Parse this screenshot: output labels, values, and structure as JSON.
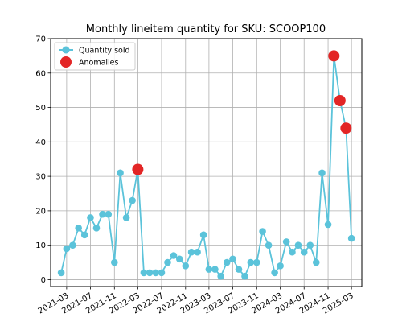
{
  "chart_data": {
    "type": "line",
    "title": "Monthly lineitem quantity for SKU: SCOOP100",
    "xlabel": "",
    "ylabel": "",
    "ylim": [
      -2,
      70
    ],
    "y_ticks": [
      0,
      10,
      20,
      30,
      40,
      50,
      60,
      70
    ],
    "x_range": [
      "2020-12-09",
      "2025-04-23"
    ],
    "x_ticks": [
      "2021-03",
      "2021-07",
      "2021-11",
      "2022-03",
      "2022-07",
      "2022-11",
      "2023-03",
      "2023-07",
      "2023-11",
      "2024-03",
      "2024-07",
      "2024-11",
      "2025-03"
    ],
    "grid": true,
    "legend_position": "top-left",
    "series": [
      {
        "name": "Quantity sold",
        "color": "#5bc3da",
        "marker": "circle",
        "x": [
          "2021-02",
          "2021-03",
          "2021-04",
          "2021-05",
          "2021-06",
          "2021-07",
          "2021-08",
          "2021-09",
          "2021-10",
          "2021-11",
          "2021-12",
          "2022-01",
          "2022-02",
          "2022-03",
          "2022-04",
          "2022-05",
          "2022-06",
          "2022-07",
          "2022-08",
          "2022-09",
          "2022-10",
          "2022-11",
          "2022-12",
          "2023-01",
          "2023-02",
          "2023-03",
          "2023-04",
          "2023-05",
          "2023-06",
          "2023-07",
          "2023-08",
          "2023-09",
          "2023-10",
          "2023-11",
          "2023-12",
          "2024-01",
          "2024-02",
          "2024-03",
          "2024-04",
          "2024-05",
          "2024-06",
          "2024-07",
          "2024-08",
          "2024-09",
          "2024-10",
          "2024-11",
          "2024-12",
          "2025-01",
          "2025-02",
          "2025-03"
        ],
        "values": [
          2,
          9,
          10,
          15,
          13,
          18,
          15,
          19,
          19,
          5,
          31,
          18,
          23,
          32,
          2,
          2,
          2,
          2,
          5,
          7,
          6,
          4,
          8,
          8,
          13,
          3,
          3,
          1,
          5,
          6,
          3,
          1,
          5,
          5,
          14,
          10,
          2,
          4,
          11,
          8,
          10,
          8,
          10,
          5,
          31,
          16,
          65,
          52,
          44,
          12
        ]
      },
      {
        "name": "Anomalies",
        "color": "#e32626",
        "marker": "circle",
        "x": [
          "2022-03",
          "2024-12",
          "2025-01",
          "2025-02"
        ],
        "values": [
          32,
          65,
          52,
          44
        ]
      }
    ]
  }
}
